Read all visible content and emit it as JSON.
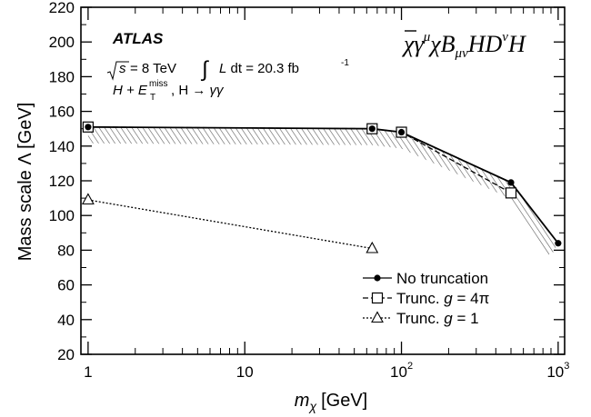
{
  "chart_data": {
    "type": "line",
    "xscale": "log",
    "xlim": [
      0.9,
      1100
    ],
    "ylim": [
      20,
      220
    ],
    "xlabel": "m",
    "xlabel_sub": "χ",
    "xlabel_unit": "[GeV]",
    "ylabel": "Mass scale Λ [GeV]",
    "x_ticks": [
      {
        "value": 1,
        "label": "1"
      },
      {
        "value": 10,
        "label": "10"
      },
      {
        "value": 100,
        "label": "10",
        "sup": "2"
      },
      {
        "value": 1000,
        "label": "10",
        "sup": "3"
      }
    ],
    "y_ticks": [
      20,
      40,
      60,
      80,
      100,
      120,
      140,
      160,
      180,
      200,
      220
    ],
    "annotations": {
      "experiment": "ATLAS",
      "energy_lhs": "s",
      "energy_rhs": "= 8 TeV",
      "lumi_int": "L dt = 20.3 fb",
      "lumi_sup": "-1",
      "channel_a": "H + E",
      "channel_sup": "miss",
      "channel_sub": "T",
      "channel_b": ", H → γγ",
      "operator": "χγ",
      "operator_mu": "μ",
      "operator_mid": "χB",
      "operator_munu": "μν",
      "operator_end": "HD",
      "operator_nu": "ν",
      "operator_tail": "H"
    },
    "series": [
      {
        "name": "No truncation",
        "style": "solid",
        "marker": "filled-circle",
        "x": [
          1,
          65,
          100,
          500,
          1000
        ],
        "y": [
          151,
          150,
          148,
          119,
          84
        ]
      },
      {
        "name": "Trunc. g = 4π",
        "style": "dashed",
        "marker": "open-square",
        "x": [
          1,
          65,
          100,
          500
        ],
        "y": [
          151,
          150,
          148,
          113
        ]
      },
      {
        "name": "Trunc. g = 1",
        "style": "dotted",
        "marker": "open-triangle",
        "x": [
          1,
          65
        ],
        "y": [
          109,
          81
        ]
      }
    ]
  }
}
